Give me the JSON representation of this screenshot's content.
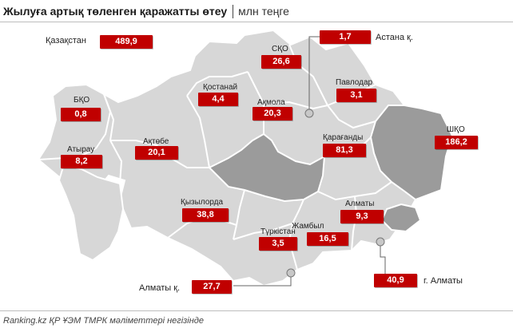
{
  "title": "Жылуға артық төленген қаражатты өтеу",
  "unit": "млн теңге",
  "source": "Ranking.kz ҚР ҰЭМ ТМРК мәліметтері негізінде",
  "colors": {
    "value_box": "#c00000",
    "region_fill": "#d7d7d7",
    "region_dark": "#9b9b9b",
    "border": "#ffffff"
  },
  "regions": [
    {
      "id": "kazakhstan",
      "name": "Қазақстан",
      "value": "489,9"
    },
    {
      "id": "sko",
      "name": "СҚО",
      "value": "26,6"
    },
    {
      "id": "astana",
      "name": "Астана қ.",
      "value": "1,7"
    },
    {
      "id": "kostanay",
      "name": "Қостанай",
      "value": "4,4"
    },
    {
      "id": "akmola",
      "name": "Ақмола",
      "value": "20,3"
    },
    {
      "id": "pavlodar",
      "name": "Павлодар",
      "value": "3,1"
    },
    {
      "id": "bko",
      "name": "БҚО",
      "value": "0,8"
    },
    {
      "id": "vko",
      "name": "ШҚО",
      "value": "186,2"
    },
    {
      "id": "aktobe",
      "name": "Ақтөбе",
      "value": "20,1"
    },
    {
      "id": "karaganda",
      "name": "Қарағанды",
      "value": "81,3"
    },
    {
      "id": "atyrau",
      "name": "Атырау",
      "value": "8,2"
    },
    {
      "id": "kyzylorda",
      "name": "Қызылорда",
      "value": "38,8"
    },
    {
      "id": "almaty_obl",
      "name": "Алматы",
      "value": "9,3"
    },
    {
      "id": "zhambyl",
      "name": "Жамбыл",
      "value": "16,5"
    },
    {
      "id": "turkistan",
      "name": "Түркістан",
      "value": "3,5"
    },
    {
      "id": "almaty_city",
      "name": "г. Алматы",
      "value": "40,9"
    },
    {
      "id": "shymkent",
      "name": "Алматы қ.",
      "value": "27,7"
    }
  ]
}
